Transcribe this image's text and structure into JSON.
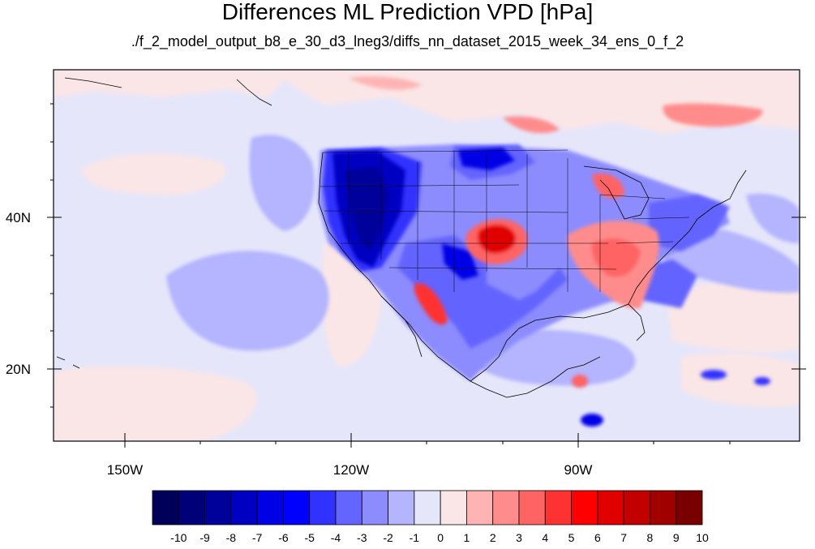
{
  "title": "Differences ML Prediction VPD [hPa]",
  "subtitle": "./f_2_model_output_b8_e_30_d3_lneg3/diffs_nn_dataset_2015_week_34_ens_0_f_2",
  "map": {
    "region": "North America and eastern Pacific",
    "projection": "cylindrical equidistant",
    "lat_labels": [
      "40N",
      "20N"
    ],
    "lon_labels": [
      "150W",
      "120W",
      "90W"
    ],
    "fill_type": "filled contour",
    "colors": {
      "background": "#e6e6fa",
      "strong_negative": "#0000b4",
      "strong_positive": "#e10000",
      "coastline": "#000000"
    }
  },
  "colorbar": {
    "labels": [
      "-10",
      "-9",
      "-8",
      "-7",
      "-6",
      "-5",
      "-4",
      "-3",
      "-2",
      "-1",
      "0",
      "1",
      "2",
      "3",
      "4",
      "5",
      "6",
      "7",
      "8",
      "9",
      "10"
    ],
    "colors": [
      "#00005a",
      "#000078",
      "#00009b",
      "#0000c3",
      "#0000e6",
      "#0000ff",
      "#3232ff",
      "#6464ff",
      "#8c8cff",
      "#b4b4ff",
      "#e6e6fa",
      "#fae6e6",
      "#ffb4b4",
      "#ff8c8c",
      "#ff6464",
      "#ff3232",
      "#ff0000",
      "#e10000",
      "#c30000",
      "#a00000",
      "#780000"
    ]
  }
}
